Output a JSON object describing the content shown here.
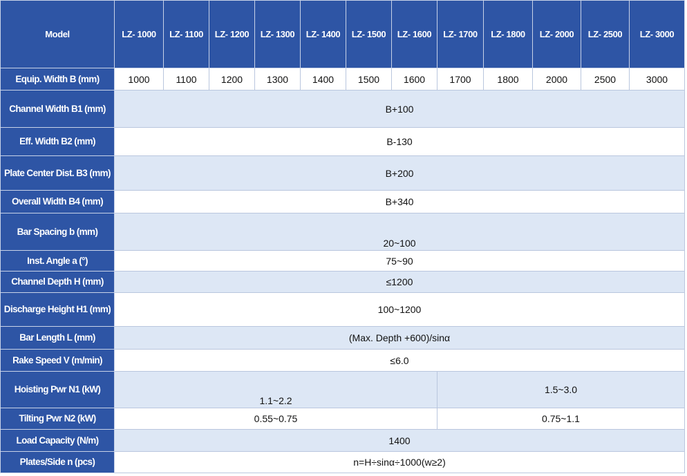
{
  "table": {
    "header": [
      "Model",
      "LZ- 1000",
      "LZ- 1100",
      "LZ- 1200",
      "LZ- 1300",
      "LZ- 1400",
      "LZ- 1500",
      "LZ- 1600",
      "LZ- 1700",
      "LZ- 1800",
      "LZ- 2000",
      "LZ- 2500",
      "LZ- 3000"
    ],
    "rows": [
      {
        "label": "Equip. Width B (mm)",
        "cells": [
          "1000",
          "1100",
          "1200",
          "1300",
          "1400",
          "1500",
          "1600",
          "1700",
          "1800",
          "2000",
          "2500",
          "3000"
        ]
      },
      {
        "label": "Channel Width B1 (mm)",
        "cells": [
          "B+100"
        ]
      },
      {
        "label": "Eff. Width B2 (mm)",
        "cells": [
          "B-130"
        ]
      },
      {
        "label": "Plate Center Dist. B3 (mm)",
        "cells": [
          "B+200"
        ]
      },
      {
        "label": "Overall Width B4 (mm)",
        "cells": [
          "B+340"
        ]
      },
      {
        "label": "Bar Spacing b (mm)",
        "cells": [
          "20~100"
        ]
      },
      {
        "label": "Inst. Angle a (°)",
        "cells": [
          "75~90"
        ]
      },
      {
        "label": "Channel Depth H (mm)",
        "cells": [
          "≤1200"
        ]
      },
      {
        "label": "Discharge Height H1 (mm)",
        "cells": [
          "100~1200"
        ]
      },
      {
        "label": "Bar Length L (mm)",
        "cells": [
          "(Max. Depth +600)/sinα"
        ]
      },
      {
        "label": "Rake Speed V (m/min)",
        "cells": [
          "≤6.0"
        ]
      },
      {
        "label": "Hoisting Pwr N1 (kW)",
        "cells": [
          "1.1~2.2",
          "1.5~3.0"
        ]
      },
      {
        "label": "Tilting Pwr N2 (kW)",
        "cells": [
          "0.55~0.75",
          "0.75~1.1"
        ]
      },
      {
        "label": "Load Capacity (N/m)",
        "cells": [
          "1400"
        ]
      },
      {
        "label": "Plates/Side n (pcs)",
        "cells": [
          "n=H÷sinα÷1000(w≥2)"
        ]
      }
    ]
  }
}
